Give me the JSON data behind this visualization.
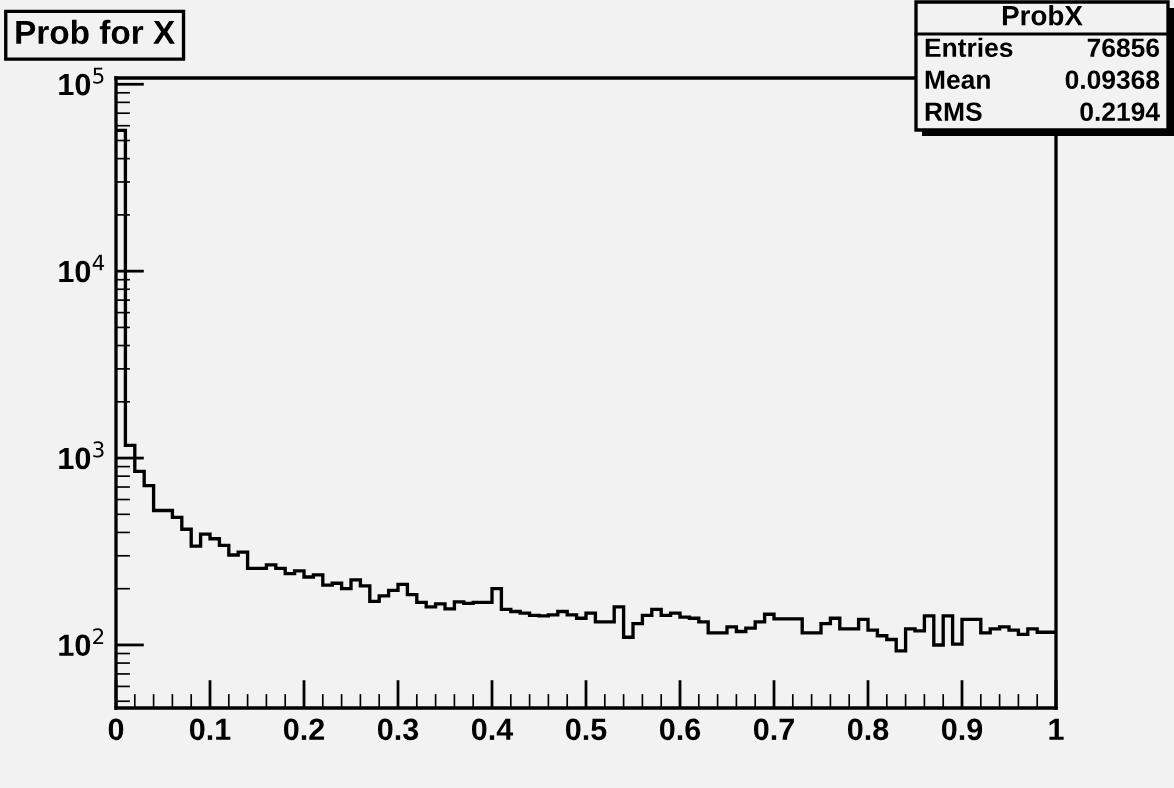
{
  "chart_data": {
    "type": "histogram",
    "title": "Prob for X",
    "bins": [
      0,
      0.01,
      0.02,
      0.03,
      0.04,
      0.05,
      0.06,
      0.07,
      0.08,
      0.09,
      0.1,
      0.11,
      0.12,
      0.13,
      0.14,
      0.15,
      0.16,
      0.17,
      0.18,
      0.19,
      0.2,
      0.21,
      0.22,
      0.23,
      0.24,
      0.25,
      0.26,
      0.27,
      0.28,
      0.29,
      0.3,
      0.31,
      0.32,
      0.33,
      0.34,
      0.35,
      0.36,
      0.37,
      0.38,
      0.39,
      0.4,
      0.41,
      0.42,
      0.43,
      0.44,
      0.45,
      0.46,
      0.47,
      0.48,
      0.49,
      0.5,
      0.51,
      0.52,
      0.53,
      0.54,
      0.55,
      0.56,
      0.57,
      0.58,
      0.59,
      0.6,
      0.61,
      0.62,
      0.63,
      0.64,
      0.65,
      0.66,
      0.67,
      0.68,
      0.69,
      0.7,
      0.71,
      0.72,
      0.73,
      0.74,
      0.75,
      0.76,
      0.77,
      0.78,
      0.79,
      0.8,
      0.81,
      0.82,
      0.83,
      0.84,
      0.85,
      0.86,
      0.87,
      0.88,
      0.89,
      0.9,
      0.91,
      0.92,
      0.93,
      0.94,
      0.95,
      0.96,
      0.97,
      0.98,
      0.99,
      1
    ],
    "values": [
      56700,
      1170,
      848,
      712,
      524,
      524,
      482,
      416,
      338,
      392,
      370,
      341,
      303,
      314,
      257,
      257,
      268,
      257,
      241,
      249,
      231,
      237,
      209,
      214,
      200,
      223,
      207,
      171,
      183,
      196,
      211,
      186,
      169,
      160,
      166,
      156,
      170,
      167,
      169,
      169,
      200,
      155,
      151,
      148,
      144,
      143,
      145,
      151,
      145,
      139,
      148,
      133,
      133,
      160,
      110,
      130,
      144,
      155,
      144,
      148,
      141,
      139,
      133,
      116,
      116,
      125,
      118,
      123,
      133,
      146,
      138,
      138,
      138,
      116,
      116,
      130,
      139,
      122,
      122,
      137,
      120,
      112,
      107,
      93,
      122,
      119,
      143,
      100,
      143,
      101,
      137,
      137,
      116,
      122,
      125,
      120,
      114,
      122,
      117,
      117
    ],
    "color": "#000000",
    "log": true,
    "xlim": [
      0,
      1
    ],
    "ylim": [
      46,
      108000
    ],
    "xticks": [
      0,
      {
        "value": 0.02,
        "label": null
      },
      {
        "value": 0.04,
        "label": null
      },
      {
        "value": 0.06,
        "label": null
      },
      {
        "value": 0.08,
        "label": null
      },
      0.1,
      {
        "value": 0.12,
        "label": null
      },
      {
        "value": 0.14,
        "label": null
      },
      {
        "value": 0.16,
        "label": null
      },
      {
        "value": 0.18,
        "label": null
      },
      0.2,
      {
        "value": 0.22,
        "label": null
      },
      {
        "value": 0.24,
        "label": null
      },
      {
        "value": 0.26,
        "label": null
      },
      {
        "value": 0.28,
        "label": null
      },
      0.3,
      {
        "value": 0.32,
        "label": null
      },
      {
        "value": 0.34,
        "label": null
      },
      {
        "value": 0.36,
        "label": null
      },
      {
        "value": 0.38,
        "label": null
      },
      0.4,
      {
        "value": 0.42,
        "label": null
      },
      {
        "value": 0.44,
        "label": null
      },
      {
        "value": 0.46,
        "label": null
      },
      {
        "value": 0.48,
        "label": null
      },
      0.5,
      {
        "value": 0.52,
        "label": null
      },
      {
        "value": 0.54,
        "label": null
      },
      {
        "value": 0.56,
        "label": null
      },
      {
        "value": 0.58,
        "label": null
      },
      0.6,
      {
        "value": 0.62,
        "label": null
      },
      {
        "value": 0.64,
        "label": null
      },
      {
        "value": 0.66,
        "label": null
      },
      {
        "value": 0.68,
        "label": null
      },
      0.7,
      {
        "value": 0.72,
        "label": null
      },
      {
        "value": 0.74,
        "label": null
      },
      {
        "value": 0.76,
        "label": null
      },
      {
        "value": 0.78,
        "label": null
      },
      0.8,
      {
        "value": 0.82,
        "label": null
      },
      {
        "value": 0.84,
        "label": null
      },
      {
        "value": 0.86,
        "label": null
      },
      {
        "value": 0.88,
        "label": null
      },
      0.9,
      {
        "value": 0.92,
        "label": null
      },
      {
        "value": 0.94,
        "label": null
      },
      {
        "value": 0.96,
        "label": null
      },
      {
        "value": 0.98,
        "label": null
      },
      1
    ],
    "yticks": [
      {
        "value": 100,
        "label": "10$^{2}$"
      },
      {
        "value": 1000,
        "label": "10$^{3}$"
      },
      {
        "value": 10000,
        "label": "10$^{4}$"
      },
      {
        "value": 100000,
        "label": "10$^{5}$"
      }
    ],
    "grid": false,
    "annotations": [
      "ProbX",
      "Entries",
      "76856",
      "Mean",
      "0.09368",
      "RMS",
      "0.2194"
    ]
  }
}
